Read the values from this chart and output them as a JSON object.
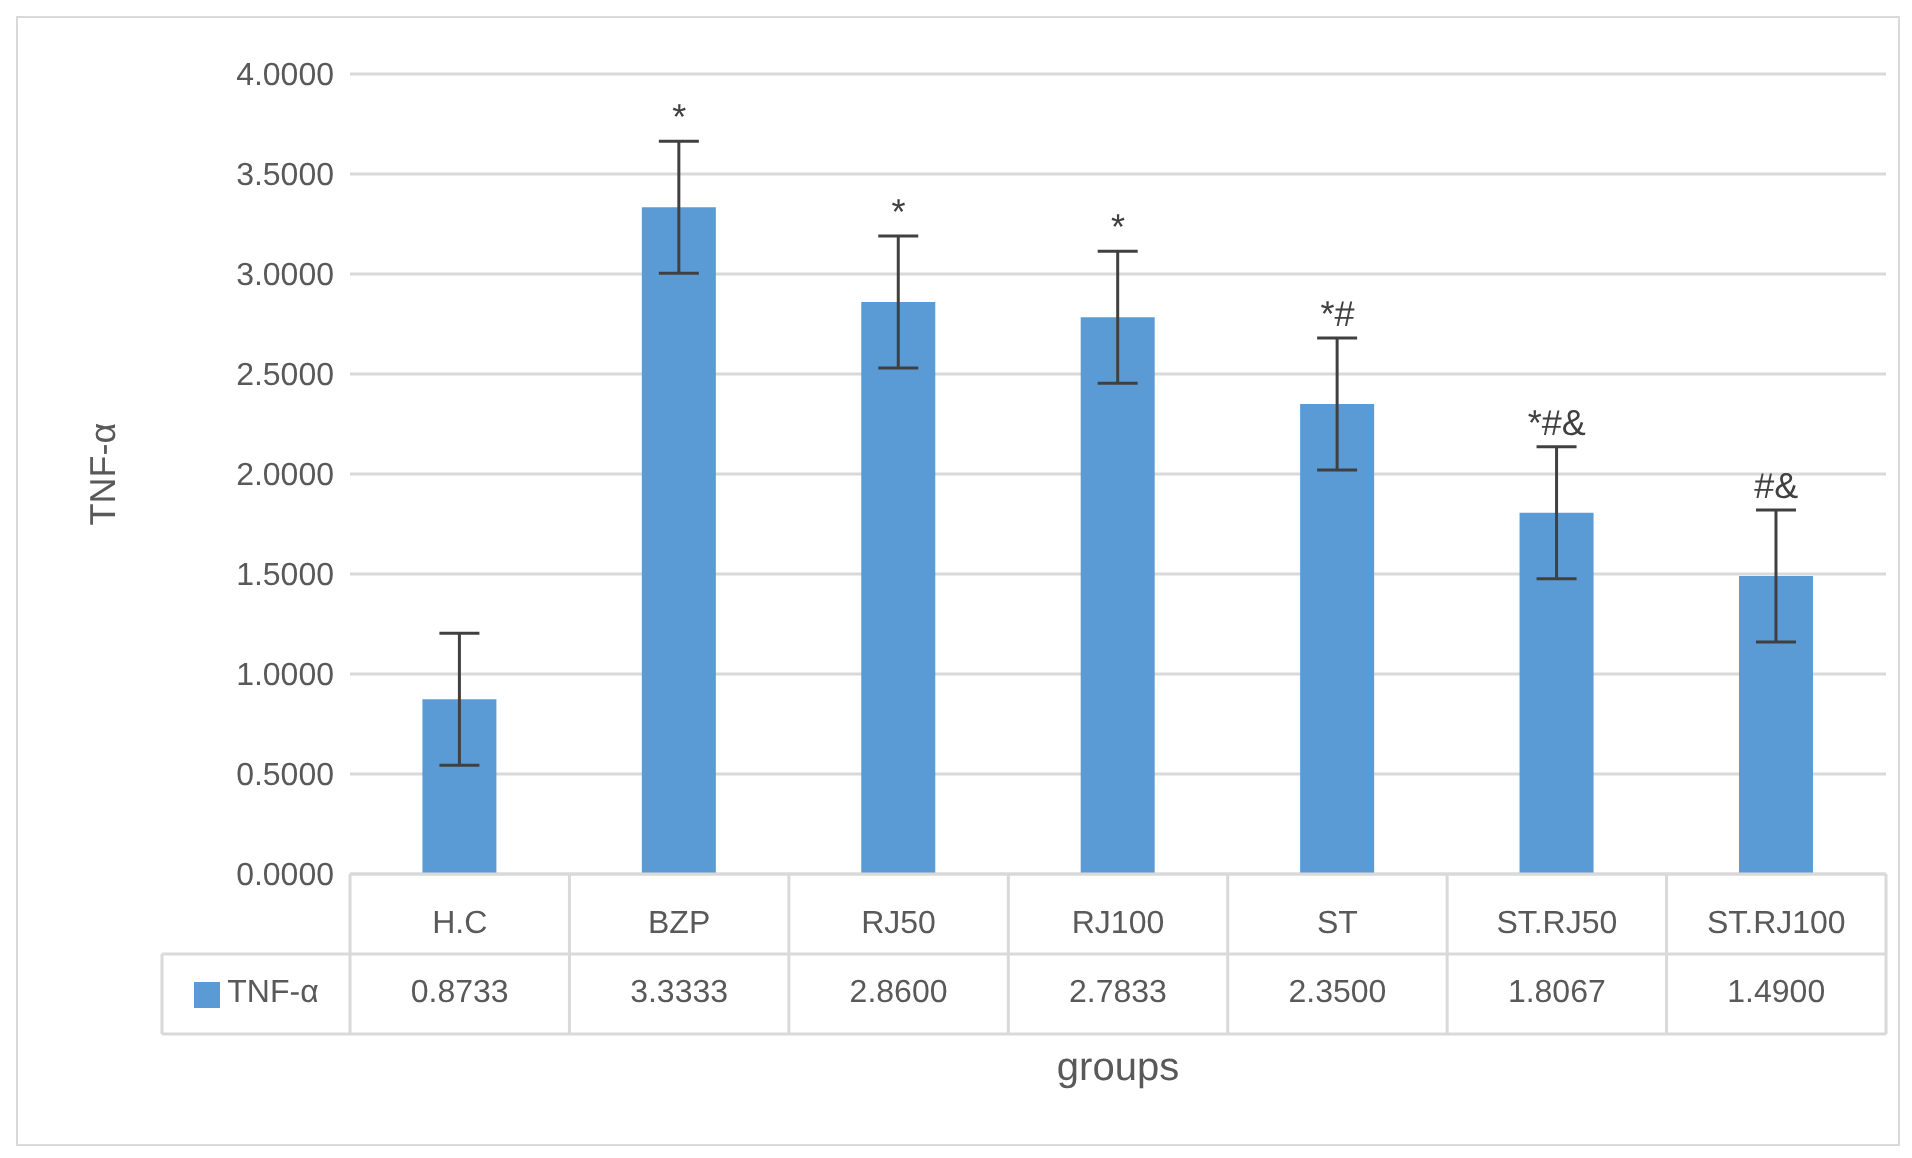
{
  "chart_data": {
    "type": "bar",
    "xlabel": "groups",
    "ylabel": "TNF-α",
    "categories": [
      "H.C",
      "BZP",
      "RJ50",
      "RJ100",
      "ST",
      "ST.RJ50",
      "ST.RJ100"
    ],
    "series": [
      {
        "name": "TNF-α",
        "color": "#5b9bd5",
        "values": [
          0.8733,
          3.3333,
          2.86,
          2.7833,
          2.35,
          1.8067,
          1.49
        ],
        "errors": [
          0.33,
          0.33,
          0.33,
          0.33,
          0.33,
          0.33,
          0.33
        ],
        "value_labels": [
          "0.8733",
          "3.3333",
          "2.8600",
          "2.7833",
          "2.3500",
          "1.8067",
          "1.4900"
        ]
      }
    ],
    "ylim": [
      0,
      4
    ],
    "yticks": [
      {
        "value": 0,
        "label": "0.0000"
      },
      {
        "value": 0.5,
        "label": "0.5000"
      },
      {
        "value": 1,
        "label": "1.0000"
      },
      {
        "value": 1.5,
        "label": "1.5000"
      },
      {
        "value": 2,
        "label": "2.0000"
      },
      {
        "value": 2.5,
        "label": "2.5000"
      },
      {
        "value": 3,
        "label": "3.0000"
      },
      {
        "value": 3.5,
        "label": "3.5000"
      },
      {
        "value": 4,
        "label": "4.0000"
      }
    ],
    "grid": "y",
    "legend": "bottom",
    "annotations": [
      {
        "text": "*",
        "x": "BZP",
        "y": 3.6633
      },
      {
        "text": "*",
        "x": "RJ50",
        "y": 3.19
      },
      {
        "text": "*",
        "x": "RJ100",
        "y": 3.1133
      },
      {
        "text": "*#",
        "x": "ST",
        "y": 2.68
      },
      {
        "text": "*#&",
        "x": "ST.RJ50",
        "y": 2.1367
      },
      {
        "text": "#&",
        "x": "ST.RJ100",
        "y": 1.82
      }
    ]
  }
}
